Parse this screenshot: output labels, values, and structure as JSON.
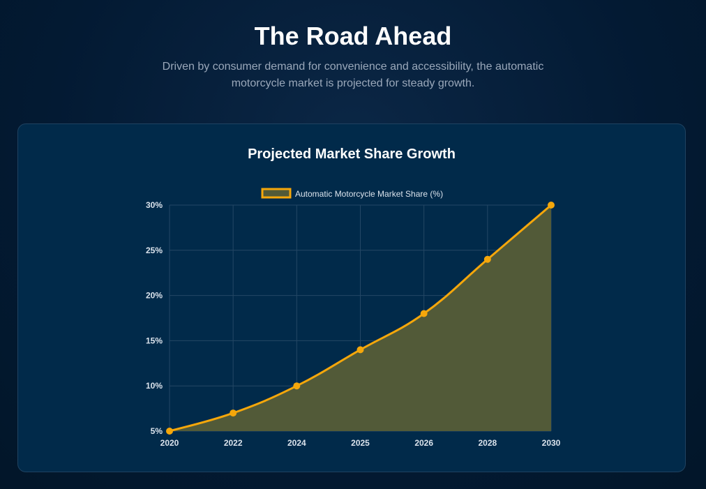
{
  "header": {
    "title": "The Road Ahead",
    "subtitle": "Driven by consumer demand for convenience and accessibility, the automatic motorcycle market is projected for steady growth."
  },
  "colors": {
    "line": "#f5a70b",
    "fill": "#525a38",
    "grid": "#244765"
  },
  "chart_data": {
    "type": "area",
    "title": "Projected Market Share Growth",
    "categories": [
      "2020",
      "2022",
      "2024",
      "2025",
      "2026",
      "2028",
      "2030"
    ],
    "series": [
      {
        "name": "Automatic Motorcycle Market Share (%)",
        "values": [
          5,
          7,
          10,
          14,
          18,
          24,
          30
        ]
      }
    ],
    "ylim": [
      5,
      30
    ],
    "yticks": [
      "5%",
      "10%",
      "15%",
      "20%",
      "25%",
      "30%"
    ],
    "ytick_values": [
      5,
      10,
      15,
      20,
      25,
      30
    ],
    "grid": true,
    "legend_position": "top"
  }
}
